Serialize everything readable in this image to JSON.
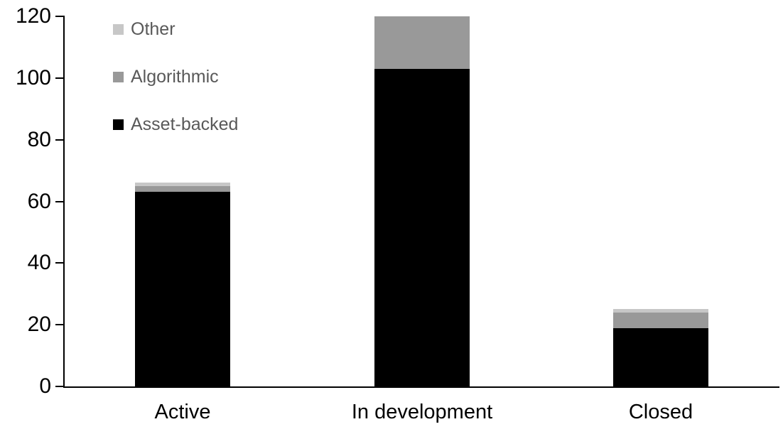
{
  "chart_data": {
    "type": "bar",
    "subtype": "stacked",
    "title": "",
    "xlabel": "",
    "ylabel": "",
    "categories": [
      "Active",
      "In development",
      "Closed"
    ],
    "series": [
      {
        "name": "Asset-backed",
        "color": "#000000",
        "values": [
          63,
          103,
          19
        ]
      },
      {
        "name": "Algorithmic",
        "color": "#999999",
        "values": [
          2,
          17,
          5
        ]
      },
      {
        "name": "Other",
        "color": "#c7c7c7",
        "values": [
          1,
          0,
          1
        ]
      }
    ],
    "totals": [
      66,
      120,
      25
    ],
    "ylim": [
      0,
      120
    ],
    "yticks": [
      0,
      20,
      40,
      60,
      80,
      100,
      120
    ],
    "grid": false,
    "legend": {
      "position": "top-left",
      "order_top_to_bottom": [
        "Other",
        "Algorithmic",
        "Asset-backed"
      ]
    }
  },
  "colors": {
    "background": "#ffffff",
    "axis": "#000000",
    "tick_label_text": "#000000",
    "category_label_text": "#000000",
    "legend_text": "#595959"
  }
}
